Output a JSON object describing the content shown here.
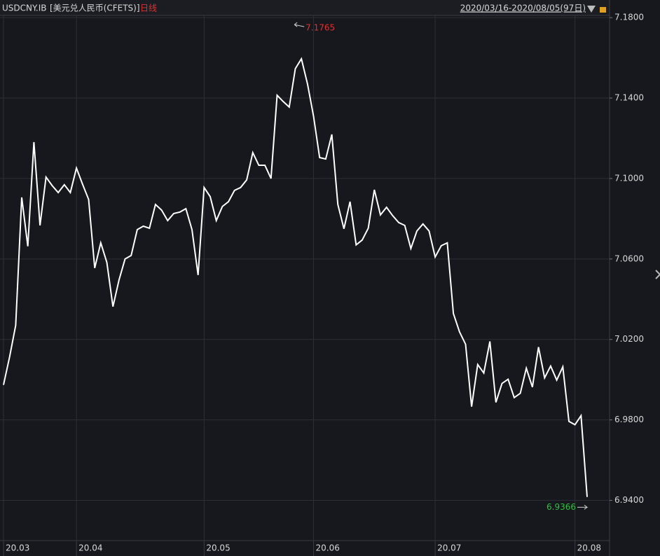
{
  "chart_data": {
    "type": "line",
    "symbol": "USDCNY.IB",
    "name": "[美元兑人民币(CFETS)]",
    "period": "日线",
    "date_range": "2020/03/16-2020/08/05(97日)",
    "color": "#ffffff",
    "grid": true,
    "categories": [
      "20.03",
      null,
      null,
      null,
      null,
      null,
      null,
      null,
      null,
      null,
      null,
      null,
      "20.04",
      null,
      null,
      null,
      null,
      null,
      null,
      null,
      null,
      null,
      null,
      null,
      null,
      null,
      null,
      null,
      null,
      null,
      null,
      null,
      null,
      "20.05",
      null,
      null,
      null,
      null,
      null,
      null,
      null,
      null,
      null,
      null,
      null,
      null,
      null,
      null,
      null,
      null,
      null,
      "20.06",
      null,
      null,
      null,
      null,
      null,
      null,
      null,
      null,
      null,
      null,
      null,
      null,
      null,
      null,
      null,
      null,
      null,
      null,
      null,
      "20.07",
      null,
      null,
      null,
      null,
      null,
      null,
      null,
      null,
      null,
      null,
      null,
      null,
      null,
      null,
      null,
      null,
      null,
      null,
      null,
      null,
      null,
      null,
      "20.08",
      null,
      null
    ],
    "values": [
      6.9974,
      7.0113,
      7.027,
      7.0906,
      7.0663,
      7.1181,
      7.0767,
      7.1007,
      7.0965,
      7.093,
      7.0969,
      7.093,
      7.1052,
      7.0972,
      7.0896,
      7.0555,
      7.068,
      7.0583,
      7.0363,
      7.0496,
      7.06,
      7.0617,
      7.0746,
      7.0763,
      7.0753,
      7.0871,
      7.0843,
      7.0791,
      7.0826,
      7.0833,
      7.085,
      7.0746,
      7.052,
      7.0955,
      7.091,
      7.0791,
      7.0861,
      7.0885,
      7.0941,
      7.0955,
      7.0993,
      7.1129,
      7.1066,
      7.1066,
      7.1,
      7.1414,
      7.1383,
      7.1355,
      7.1546,
      7.1595,
      7.147,
      7.131,
      7.1104,
      7.1097,
      7.1219,
      7.0871,
      7.075,
      7.0885,
      7.067,
      7.0694,
      7.0753,
      7.0944,
      7.0819,
      7.0857,
      7.0816,
      7.0781,
      7.0767,
      7.0652,
      7.0739,
      7.0774,
      7.0739,
      7.061,
      7.0666,
      7.068,
      7.0329,
      7.0238,
      7.0176,
      6.9866,
      7.0075,
      7.0033,
      7.019,
      6.9887,
      6.9981,
      7.0002,
      6.9911,
      6.9932,
      7.0057,
      6.9963,
      7.0162,
      7.0009,
      7.0068,
      6.9998,
      7.0064,
      6.9793,
      6.9776,
      6.9821,
      6.9417
    ],
    "ylim": [
      6.92,
      7.187
    ],
    "yticks": [
      {
        "value": 6.94,
        "label": "6.9400"
      },
      {
        "value": 6.98,
        "label": "6.9800"
      },
      {
        "value": 7.02,
        "label": "7.0200"
      },
      {
        "value": 7.06,
        "label": "7.0600"
      },
      {
        "value": 7.1,
        "label": "7.1000"
      },
      {
        "value": 7.14,
        "label": "7.1400"
      },
      {
        "value": 7.18,
        "label": "7.1800"
      }
    ],
    "high": 7.1765,
    "low": 6.9366
  }
}
